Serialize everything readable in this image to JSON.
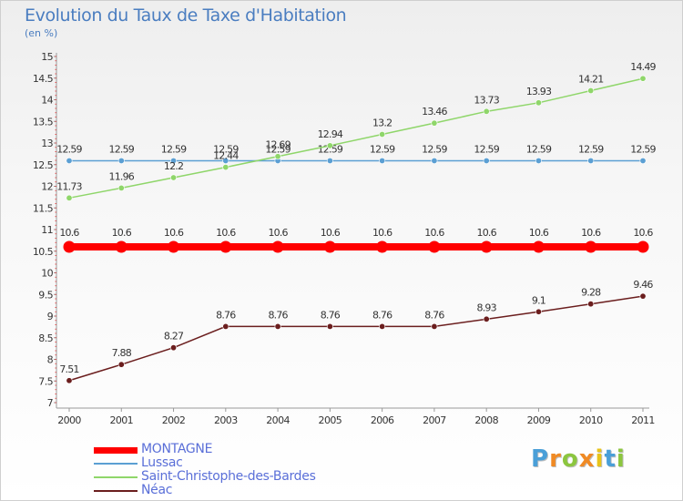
{
  "header": {
    "title": "Evolution du Taux de Taxe d'Habitation",
    "subtitle": "(en %)"
  },
  "logo": {
    "letters": [
      "P",
      "r",
      "o",
      "x",
      "i",
      "t",
      "i"
    ],
    "colors": [
      "#4a9fd8",
      "#f08a24",
      "#8cc63f",
      "#f08a24",
      "#e8c41a",
      "#4a9fd8",
      "#8cc63f"
    ]
  },
  "chart_data": {
    "type": "line",
    "title": "Evolution du Taux de Taxe d'Habitation",
    "ylabel": "(en %)",
    "xlabel": "",
    "x": [
      "2000",
      "2001",
      "2002",
      "2003",
      "2004",
      "2005",
      "2006",
      "2007",
      "2008",
      "2009",
      "2010",
      "2011"
    ],
    "ylim": [
      7,
      15
    ],
    "yticks": [
      "7",
      "7.5",
      "8",
      "8.5",
      "9",
      "9.5",
      "10",
      "10.5",
      "11",
      "11.5",
      "12",
      "12.5",
      "13",
      "13.5",
      "14",
      "14.5",
      "15"
    ],
    "grid": false,
    "legend_position": "bottom-left",
    "series": [
      {
        "name": "MONTAGNE",
        "color": "#ff0000",
        "values": [
          10.6,
          10.6,
          10.6,
          10.6,
          10.6,
          10.6,
          10.6,
          10.6,
          10.6,
          10.6,
          10.6,
          10.6
        ],
        "labels": [
          "10.6",
          "10.6",
          "10.6",
          "10.6",
          "10.6",
          "10.6",
          "10.6",
          "10.6",
          "10.6",
          "10.6",
          "10.6",
          "10.6"
        ]
      },
      {
        "name": "Lussac",
        "color": "#5b9fd3",
        "values": [
          12.59,
          12.59,
          12.59,
          12.59,
          12.59,
          12.59,
          12.59,
          12.59,
          12.59,
          12.59,
          12.59,
          12.59
        ],
        "labels": [
          "12.59",
          "12.59",
          "12.59",
          "12.59",
          "12.59",
          "12.59",
          "12.59",
          "12.59",
          "12.59",
          "12.59",
          "12.59",
          "12.59"
        ]
      },
      {
        "name": "Saint-Christophe-des-Bardes",
        "color": "#8fd66a",
        "values": [
          11.73,
          11.96,
          12.2,
          12.44,
          12.69,
          12.94,
          13.2,
          13.46,
          13.73,
          13.93,
          14.21,
          14.49
        ],
        "labels": [
          "11.73",
          "11.96",
          "12.2",
          "12.44",
          "12.69",
          "12.94",
          "13.2",
          "13.46",
          "13.73",
          "13.93",
          "14.21",
          "14.49"
        ]
      },
      {
        "name": "Néac",
        "color": "#6b1e1e",
        "values": [
          7.51,
          7.88,
          8.27,
          8.76,
          8.76,
          8.76,
          8.76,
          8.76,
          8.93,
          9.1,
          9.28,
          9.46
        ],
        "labels": [
          "7.51",
          "7.88",
          "8.27",
          "8.76",
          "8.76",
          "8.76",
          "8.76",
          "8.76",
          "8.93",
          "9.1",
          "9.28",
          "9.46"
        ]
      }
    ]
  }
}
